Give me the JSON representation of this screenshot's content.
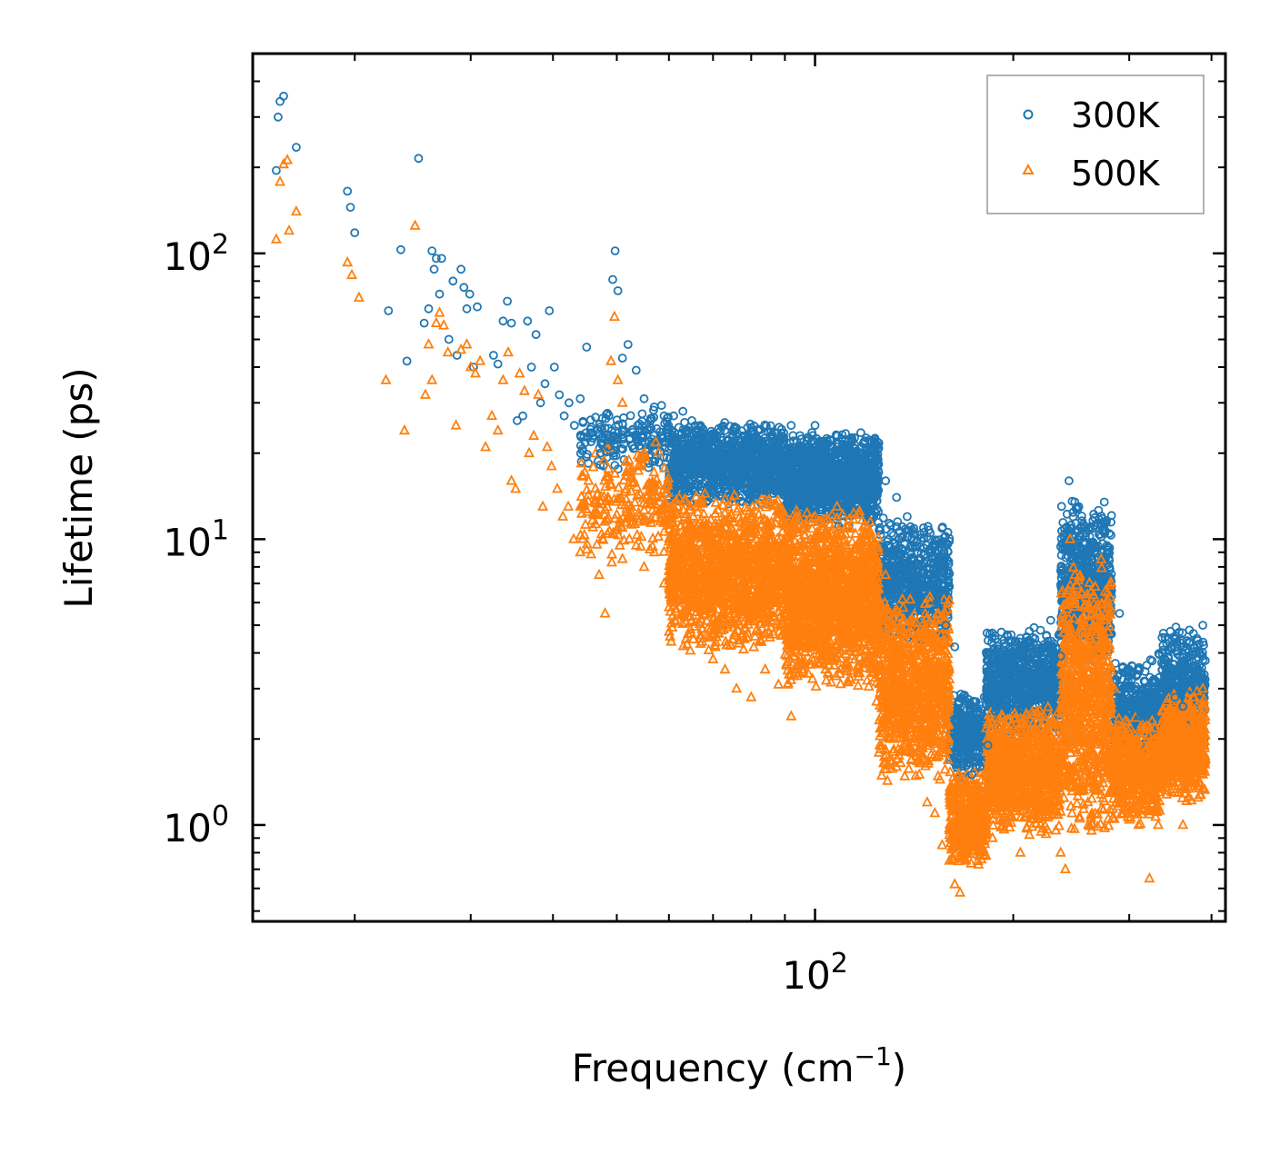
{
  "chart_data": {
    "type": "scatter",
    "title": "",
    "xlabel": "Frequency (cm",
    "xlabel_sup": "−1",
    "xlabel_end": ")",
    "ylabel": "Lifetime (ps)",
    "xscale": "log",
    "yscale": "log",
    "xlim": [
      14,
      420
    ],
    "ylim": [
      0.46,
      500
    ],
    "x_major_ticks": [
      {
        "value": 100,
        "base": "10",
        "exp": "2"
      }
    ],
    "y_major_ticks": [
      {
        "value": 1,
        "base": "10",
        "exp": "0"
      },
      {
        "value": 10,
        "base": "10",
        "exp": "1"
      },
      {
        "value": 100,
        "base": "10",
        "exp": "2"
      }
    ],
    "legend_position": "top-right",
    "series": [
      {
        "name": "300K",
        "marker": "circle",
        "color": "#1f77b4",
        "points": [
          [
            15.2,
            195
          ],
          [
            15.3,
            300
          ],
          [
            15.4,
            340
          ],
          [
            15.6,
            355
          ],
          [
            16.3,
            235
          ],
          [
            19.5,
            165
          ],
          [
            19.7,
            145
          ],
          [
            20.0,
            118
          ],
          [
            22.5,
            63
          ],
          [
            23.5,
            103
          ],
          [
            24.0,
            42
          ],
          [
            25.0,
            215
          ],
          [
            25.5,
            57
          ],
          [
            25.9,
            64
          ],
          [
            26.2,
            102
          ],
          [
            26.4,
            88
          ],
          [
            26.6,
            96
          ],
          [
            26.9,
            72
          ],
          [
            27.1,
            96
          ],
          [
            27.8,
            50
          ],
          [
            28.2,
            80
          ],
          [
            28.6,
            44
          ],
          [
            29.0,
            88
          ],
          [
            29.3,
            76
          ],
          [
            29.6,
            64
          ],
          [
            29.9,
            72
          ],
          [
            30.3,
            40
          ],
          [
            30.7,
            65
          ],
          [
            32.5,
            44
          ],
          [
            33.0,
            41
          ],
          [
            33.6,
            58
          ],
          [
            34.1,
            68
          ],
          [
            34.6,
            57
          ],
          [
            35.3,
            26
          ],
          [
            36.0,
            27
          ],
          [
            36.6,
            58
          ],
          [
            37.1,
            40
          ],
          [
            37.7,
            52
          ],
          [
            38.3,
            30
          ],
          [
            38.9,
            35
          ],
          [
            39.5,
            63
          ],
          [
            40.2,
            40
          ],
          [
            40.9,
            32
          ],
          [
            41.6,
            27
          ],
          [
            42.3,
            30
          ],
          [
            43.1,
            25
          ],
          [
            44.0,
            31
          ],
          [
            45.0,
            47
          ],
          [
            46.0,
            23
          ],
          [
            47.2,
            20
          ],
          [
            48.5,
            21
          ],
          [
            49.3,
            81
          ],
          [
            49.7,
            102
          ],
          [
            50.2,
            74
          ],
          [
            51.0,
            43
          ],
          [
            52.0,
            48
          ],
          [
            53.5,
            39
          ],
          [
            55.0,
            31
          ],
          [
            57.0,
            29
          ],
          [
            59.0,
            27
          ],
          [
            61.0,
            27
          ],
          [
            63.0,
            28
          ],
          [
            65.0,
            26
          ],
          [
            67.0,
            25
          ],
          [
            70.0,
            23
          ],
          [
            73.0,
            24
          ],
          [
            76.0,
            20
          ],
          [
            80.0,
            24
          ],
          [
            84.0,
            22
          ],
          [
            88.0,
            21
          ],
          [
            92.0,
            25
          ],
          [
            96.0,
            20
          ],
          [
            100.0,
            25
          ],
          [
            104.0,
            18
          ],
          [
            108.0,
            21
          ],
          [
            112.0,
            20
          ],
          [
            118.0,
            20
          ],
          [
            123.0,
            22
          ],
          [
            128.0,
            16
          ],
          [
            133.0,
            14
          ],
          [
            138.0,
            12
          ],
          [
            143.0,
            9
          ],
          [
            148.0,
            7.5
          ],
          [
            153.0,
            6
          ],
          [
            158.0,
            5
          ],
          [
            163.0,
            4.2
          ],
          [
            168.0,
            2.0
          ],
          [
            173.0,
            1.5
          ],
          [
            178.0,
            1.6
          ],
          [
            183.0,
            1.9
          ],
          [
            188.0,
            2.5
          ],
          [
            193.0,
            3.6
          ],
          [
            198.0,
            4.2
          ],
          [
            205.0,
            4.5
          ],
          [
            212.0,
            4.4
          ],
          [
            220.0,
            4.8
          ],
          [
            228.0,
            5.2
          ],
          [
            236.0,
            3.9
          ],
          [
            243.0,
            16
          ],
          [
            248.0,
            13.5
          ],
          [
            253.0,
            11
          ],
          [
            258.0,
            10.5
          ],
          [
            264.0,
            9.5
          ],
          [
            272.0,
            10.2
          ],
          [
            280.0,
            8.0
          ],
          [
            290.0,
            5.5
          ],
          [
            300.0,
            3.5
          ],
          [
            312.0,
            2.4
          ],
          [
            325.0,
            2.6
          ],
          [
            340.0,
            3.8
          ],
          [
            352.0,
            2.8
          ],
          [
            362.0,
            2.6
          ],
          [
            372.0,
            3.0
          ],
          [
            380.0,
            4.5
          ],
          [
            388.0,
            5.0
          ]
        ]
      },
      {
        "name": "500K",
        "marker": "triangle",
        "color": "#ff7f0e",
        "points": [
          [
            15.2,
            112
          ],
          [
            15.4,
            178
          ],
          [
            15.6,
            205
          ],
          [
            15.8,
            212
          ],
          [
            15.9,
            120
          ],
          [
            16.3,
            140
          ],
          [
            19.5,
            93
          ],
          [
            19.8,
            84
          ],
          [
            20.3,
            70
          ],
          [
            22.3,
            36
          ],
          [
            23.8,
            24
          ],
          [
            24.7,
            125
          ],
          [
            25.6,
            32
          ],
          [
            25.9,
            48
          ],
          [
            26.2,
            36
          ],
          [
            26.6,
            57
          ],
          [
            26.9,
            62
          ],
          [
            27.3,
            56
          ],
          [
            27.7,
            45
          ],
          [
            28.5,
            25
          ],
          [
            29.0,
            46
          ],
          [
            29.6,
            48
          ],
          [
            30.0,
            40
          ],
          [
            30.5,
            38
          ],
          [
            31.0,
            42
          ],
          [
            31.6,
            21
          ],
          [
            32.3,
            27
          ],
          [
            33.0,
            24
          ],
          [
            33.6,
            36
          ],
          [
            34.2,
            45
          ],
          [
            34.6,
            16
          ],
          [
            35.1,
            15
          ],
          [
            35.6,
            38
          ],
          [
            36.2,
            33
          ],
          [
            36.8,
            20
          ],
          [
            37.4,
            23
          ],
          [
            38.0,
            32
          ],
          [
            38.6,
            13
          ],
          [
            39.2,
            21
          ],
          [
            39.8,
            18
          ],
          [
            40.6,
            15
          ],
          [
            41.4,
            12
          ],
          [
            42.2,
            13
          ],
          [
            43.0,
            10
          ],
          [
            44.0,
            9
          ],
          [
            45.0,
            9.2
          ],
          [
            46.0,
            11
          ],
          [
            47.0,
            7.5
          ],
          [
            48.0,
            5.5
          ],
          [
            49.0,
            42
          ],
          [
            49.6,
            60
          ],
          [
            50.2,
            36
          ],
          [
            51.0,
            30
          ],
          [
            52.0,
            12
          ],
          [
            53.5,
            9.5
          ],
          [
            55.0,
            8
          ],
          [
            57.0,
            9
          ],
          [
            59.0,
            7
          ],
          [
            61.0,
            6
          ],
          [
            63.0,
            5.5
          ],
          [
            65.0,
            5.2
          ],
          [
            67.0,
            4.5
          ],
          [
            70.0,
            3.8
          ],
          [
            73.0,
            3.5
          ],
          [
            76.0,
            3.0
          ],
          [
            80.0,
            2.8
          ],
          [
            84.0,
            3.5
          ],
          [
            88.0,
            3.1
          ],
          [
            92.0,
            2.4
          ],
          [
            96.0,
            3.5
          ],
          [
            100.0,
            12
          ],
          [
            104.0,
            3.2
          ],
          [
            108.0,
            13
          ],
          [
            112.0,
            11
          ],
          [
            116.0,
            3.4
          ],
          [
            120.0,
            11
          ],
          [
            124.0,
            2.7
          ],
          [
            128.0,
            7.5
          ],
          [
            132.0,
            2.0
          ],
          [
            136.0,
            2.6
          ],
          [
            140.0,
            1.8
          ],
          [
            144.0,
            1.5
          ],
          [
            148.0,
            1.2
          ],
          [
            152.0,
            1.1
          ],
          [
            156.0,
            0.85
          ],
          [
            160.0,
            0.75
          ],
          [
            163.0,
            0.62
          ],
          [
            166.0,
            0.58
          ],
          [
            170.0,
            0.8
          ],
          [
            175.0,
            1.0
          ],
          [
            180.0,
            1.2
          ],
          [
            186.0,
            0.9
          ],
          [
            192.0,
            1.4
          ],
          [
            198.0,
            1.8
          ],
          [
            205.0,
            0.8
          ],
          [
            212.0,
            1.6
          ],
          [
            220.0,
            1.8
          ],
          [
            228.0,
            2.4
          ],
          [
            236.0,
            0.8
          ],
          [
            240.0,
            0.7
          ],
          [
            244.0,
            10
          ],
          [
            248.0,
            7.5
          ],
          [
            254.0,
            5.0
          ],
          [
            260.0,
            1.0
          ],
          [
            266.0,
            2.8
          ],
          [
            272.0,
            8.5
          ],
          [
            278.0,
            6.5
          ],
          [
            285.0,
            3.0
          ],
          [
            292.0,
            1.9
          ],
          [
            300.0,
            1.3
          ],
          [
            310.0,
            1.0
          ],
          [
            322.0,
            0.65
          ],
          [
            332.0,
            1.0
          ],
          [
            342.0,
            1.6
          ],
          [
            352.0,
            1.3
          ],
          [
            362.0,
            1.0
          ],
          [
            372.0,
            1.4
          ],
          [
            380.0,
            2.6
          ],
          [
            388.0,
            3.0
          ]
        ]
      }
    ],
    "bulk_bands": [
      {
        "series": "300K",
        "segments": [
          {
            "x0": 44,
            "x1": 60,
            "ylo": 17,
            "yhi": 30,
            "n": 180
          },
          {
            "x0": 60,
            "x1": 90,
            "ylo": 13,
            "yhi": 26,
            "n": 1100
          },
          {
            "x0": 90,
            "x1": 125,
            "ylo": 11,
            "yhi": 24,
            "n": 1300
          },
          {
            "x0": 125,
            "x1": 160,
            "ylo": 4.2,
            "yhi": 12,
            "n": 650
          },
          {
            "x0": 160,
            "x1": 182,
            "ylo": 1.4,
            "yhi": 3.0,
            "n": 300
          },
          {
            "x0": 182,
            "x1": 236,
            "ylo": 2.0,
            "yhi": 5.0,
            "n": 800
          },
          {
            "x0": 236,
            "x1": 282,
            "ylo": 3.5,
            "yhi": 14,
            "n": 650
          },
          {
            "x0": 282,
            "x1": 335,
            "ylo": 1.6,
            "yhi": 4.0,
            "n": 400
          },
          {
            "x0": 335,
            "x1": 392,
            "ylo": 1.7,
            "yhi": 5.0,
            "n": 500
          }
        ]
      },
      {
        "series": "500K",
        "segments": [
          {
            "x0": 44,
            "x1": 60,
            "ylo": 8,
            "yhi": 22,
            "n": 220
          },
          {
            "x0": 60,
            "x1": 90,
            "ylo": 4,
            "yhi": 15,
            "n": 1300
          },
          {
            "x0": 90,
            "x1": 125,
            "ylo": 3,
            "yhi": 13,
            "n": 1500
          },
          {
            "x0": 125,
            "x1": 160,
            "ylo": 1.4,
            "yhi": 6.5,
            "n": 900
          },
          {
            "x0": 160,
            "x1": 182,
            "ylo": 0.7,
            "yhi": 1.6,
            "n": 400
          },
          {
            "x0": 182,
            "x1": 236,
            "ylo": 0.9,
            "yhi": 2.6,
            "n": 900
          },
          {
            "x0": 236,
            "x1": 282,
            "ylo": 0.9,
            "yhi": 8.5,
            "n": 800
          },
          {
            "x0": 282,
            "x1": 335,
            "ylo": 1.0,
            "yhi": 2.4,
            "n": 500
          },
          {
            "x0": 335,
            "x1": 392,
            "ylo": 1.2,
            "yhi": 3.0,
            "n": 550
          }
        ]
      }
    ]
  }
}
